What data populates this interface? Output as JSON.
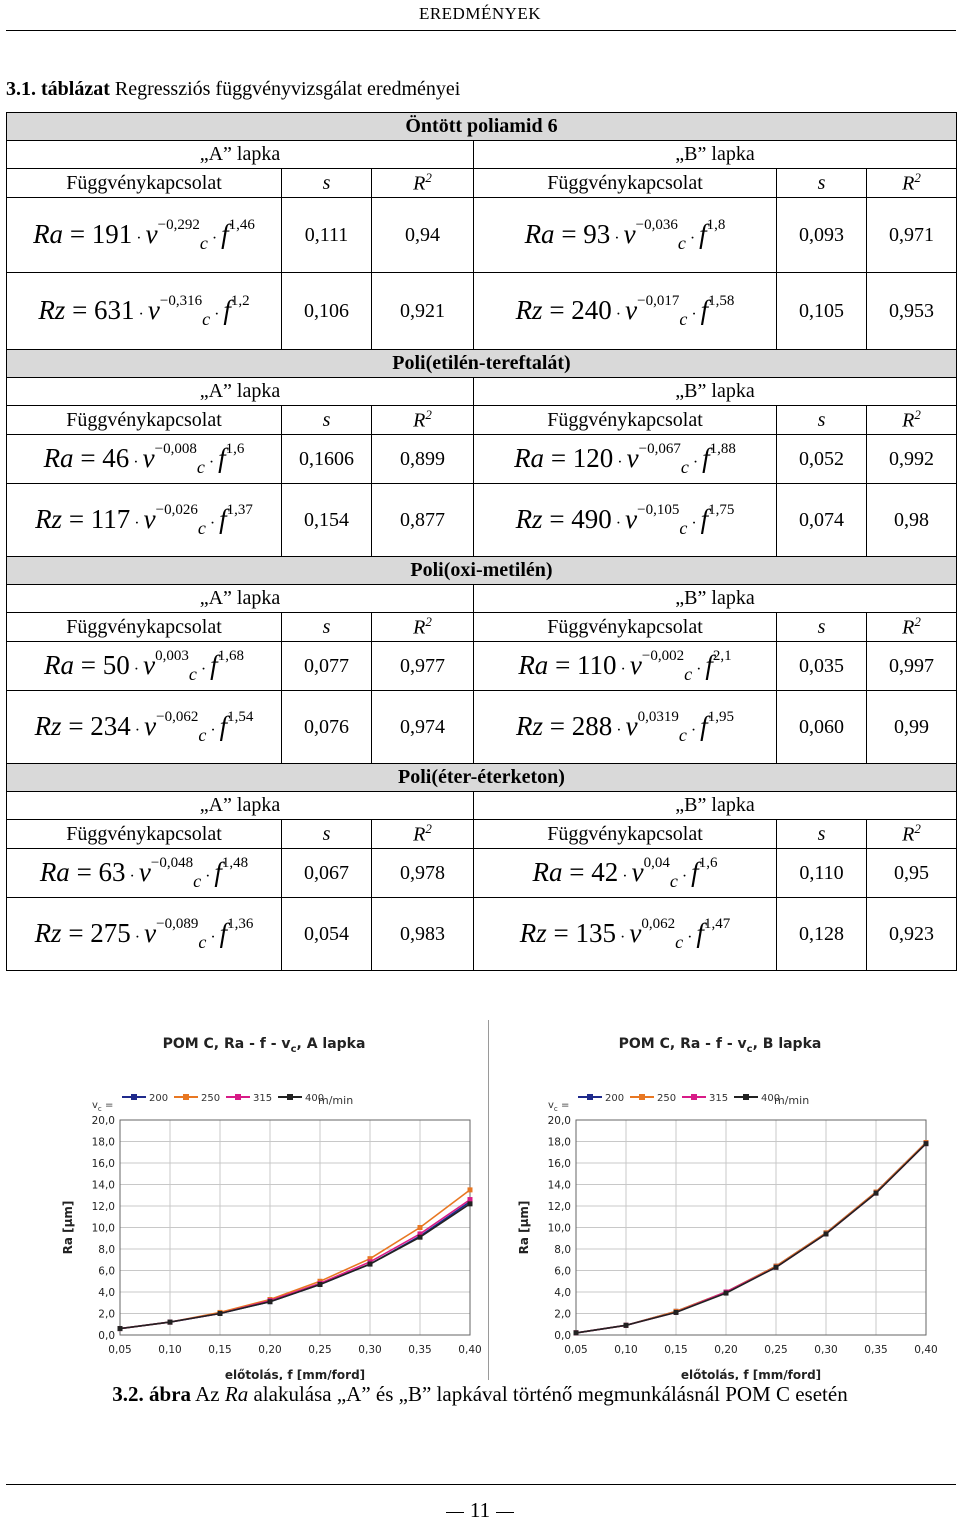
{
  "header": "EREDMÉNYEK",
  "table_caption": {
    "label": "3.1. táblázat",
    "text": "Regressziós függvényvizsgálat eredményei"
  },
  "columns": {
    "lap_a": "„A” lapka",
    "lap_b": "„B” lapka",
    "func": "Függvénykapcsolat",
    "s": "s",
    "r2": "R",
    "r2_exp": "2"
  },
  "materials": [
    {
      "name": "Öntött poliamid 6",
      "rows": [
        {
          "a": {
            "q": "Ra",
            "coef": "191",
            "ve": "−0,292",
            "fe": "1,46",
            "s": "0,111",
            "r2": "0,94"
          },
          "b": {
            "q": "Ra",
            "coef": "93",
            "ve": "−0,036",
            "fe": "1,8",
            "s": "0,093",
            "r2": "0,971"
          }
        },
        {
          "a": {
            "q": "Rz",
            "coef": "631",
            "ve": "−0,316",
            "fe": "1,2",
            "s": "0,106",
            "r2": "0,921"
          },
          "b": {
            "q": "Rz",
            "coef": "240",
            "ve": "−0,017",
            "fe": "1,58",
            "s": "0,105",
            "r2": "0,953"
          }
        }
      ]
    },
    {
      "name": "Poli(etilén-tereftalát)",
      "rows": [
        {
          "a": {
            "q": "Ra",
            "coef": "46",
            "ve": "−0,008",
            "fe": "1,6",
            "s": "0,1606",
            "r2": "0,899"
          },
          "b": {
            "q": "Ra",
            "coef": "120",
            "ve": "−0,067",
            "fe": "1,88",
            "s": "0,052",
            "r2": "0,992"
          }
        },
        {
          "a": {
            "q": "Rz",
            "coef": "117",
            "ve": "−0,026",
            "fe": "1,37",
            "s": "0,154",
            "r2": "0,877"
          },
          "b": {
            "q": "Rz",
            "coef": "490",
            "ve": "−0,105",
            "fe": "1,75",
            "s": "0,074",
            "r2": "0,98"
          }
        }
      ]
    },
    {
      "name": "Poli(oxi-metilén)",
      "rows": [
        {
          "a": {
            "q": "Ra",
            "coef": "50",
            "ve": "0,003",
            "fe": "1,68",
            "s": "0,077",
            "r2": "0,977"
          },
          "b": {
            "q": "Ra",
            "coef": "110",
            "ve": "−0,002",
            "fe": "2,1",
            "s": "0,035",
            "r2": "0,997"
          }
        },
        {
          "a": {
            "q": "Rz",
            "coef": "234",
            "ve": "−0,062",
            "fe": "1,54",
            "s": "0,076",
            "r2": "0,974"
          },
          "b": {
            "q": "Rz",
            "coef": "288",
            "ve": "0,0319",
            "fe": "1,95",
            "s": "0,060",
            "r2": "0,99"
          }
        }
      ]
    },
    {
      "name": "Poli(éter-éterketon)",
      "rows": [
        {
          "a": {
            "q": "Ra",
            "coef": "63",
            "ve": "−0,048",
            "fe": "1,48",
            "s": "0,067",
            "r2": "0,978"
          },
          "b": {
            "q": "Ra",
            "coef": "42",
            "ve": "0,04",
            "fe": "1,6",
            "s": "0,110",
            "r2": "0,95"
          }
        },
        {
          "a": {
            "q": "Rz",
            "coef": "275",
            "ve": "−0,089",
            "fe": "1,36",
            "s": "0,054",
            "r2": "0,983"
          },
          "b": {
            "q": "Rz",
            "coef": "135",
            "ve": "0,062",
            "fe": "1,47",
            "s": "0,128",
            "r2": "0,923"
          }
        }
      ]
    }
  ],
  "colors": {
    "s200": "#1f2a8c",
    "s250": "#e87722",
    "s315": "#d81b87",
    "s400": "#222222"
  },
  "chart_data": [
    {
      "type": "line",
      "title": "POM C, Ra - f - v",
      "title_sub": "c",
      "title_end": ", A lapka",
      "legend_label": "v",
      "legend_sub": "c",
      "legend_eq": " =",
      "legend_unit": "m/min",
      "xlabel": "előtolás, f [mm/ford]",
      "ylabel": "Ra [µm]",
      "xticks": [
        "0,05",
        "0,10",
        "0,15",
        "0,20",
        "0,25",
        "0,30",
        "0,35",
        "0,40"
      ],
      "yticks": [
        "0,0",
        "2,0",
        "4,0",
        "6,0",
        "8,0",
        "10,0",
        "12,0",
        "14,0",
        "16,0",
        "18,0",
        "20,0"
      ],
      "xlim": [
        0.05,
        0.4
      ],
      "ylim": [
        0,
        20
      ],
      "x": [
        0.05,
        0.1,
        0.15,
        0.2,
        0.25,
        0.3,
        0.35,
        0.4
      ],
      "series": [
        {
          "name": "200",
          "values": [
            0.6,
            1.2,
            2.0,
            3.1,
            4.7,
            6.6,
            9.2,
            12.4
          ]
        },
        {
          "name": "250",
          "values": [
            0.6,
            1.2,
            2.1,
            3.3,
            5.0,
            7.1,
            10.0,
            13.5
          ]
        },
        {
          "name": "315",
          "values": [
            0.6,
            1.2,
            2.0,
            3.2,
            4.8,
            6.8,
            9.4,
            12.6
          ]
        },
        {
          "name": "400",
          "values": [
            0.6,
            1.2,
            2.0,
            3.1,
            4.7,
            6.6,
            9.1,
            12.2
          ]
        }
      ]
    },
    {
      "type": "line",
      "title": "POM C, Ra - f - v",
      "title_sub": "c",
      "title_end": ", B lapka",
      "legend_label": "v",
      "legend_sub": "c",
      "legend_eq": " =",
      "legend_unit": "m/min",
      "xlabel": "előtolás, f [mm/ford]",
      "ylabel": "Ra [µm]",
      "xticks": [
        "0,05",
        "0,10",
        "0,15",
        "0,20",
        "0,25",
        "0,30",
        "0,35",
        "0,40"
      ],
      "yticks": [
        "0,0",
        "2,0",
        "4,0",
        "6,0",
        "8,0",
        "10,0",
        "12,0",
        "14,0",
        "16,0",
        "18,0",
        "20,0"
      ],
      "xlim": [
        0.05,
        0.4
      ],
      "ylim": [
        0,
        20
      ],
      "x": [
        0.05,
        0.1,
        0.15,
        0.2,
        0.25,
        0.3,
        0.35,
        0.4
      ],
      "series": [
        {
          "name": "200",
          "values": [
            0.2,
            0.9,
            2.2,
            4.0,
            6.4,
            9.5,
            13.3,
            17.9
          ]
        },
        {
          "name": "250",
          "values": [
            0.2,
            0.9,
            2.2,
            4.0,
            6.4,
            9.5,
            13.3,
            17.9
          ]
        },
        {
          "name": "315",
          "values": [
            0.2,
            0.9,
            2.1,
            4.0,
            6.3,
            9.4,
            13.2,
            17.8
          ]
        },
        {
          "name": "400",
          "values": [
            0.2,
            0.9,
            2.1,
            3.9,
            6.3,
            9.4,
            13.2,
            17.8
          ]
        }
      ]
    }
  ],
  "figure_caption": {
    "label": "3.2. ábra",
    "pre": "Az",
    "q": "Ra",
    "post": "alakulása „A” és „B” lapkával történő megmunkálásnál POM C esetén"
  },
  "page_number": "11"
}
